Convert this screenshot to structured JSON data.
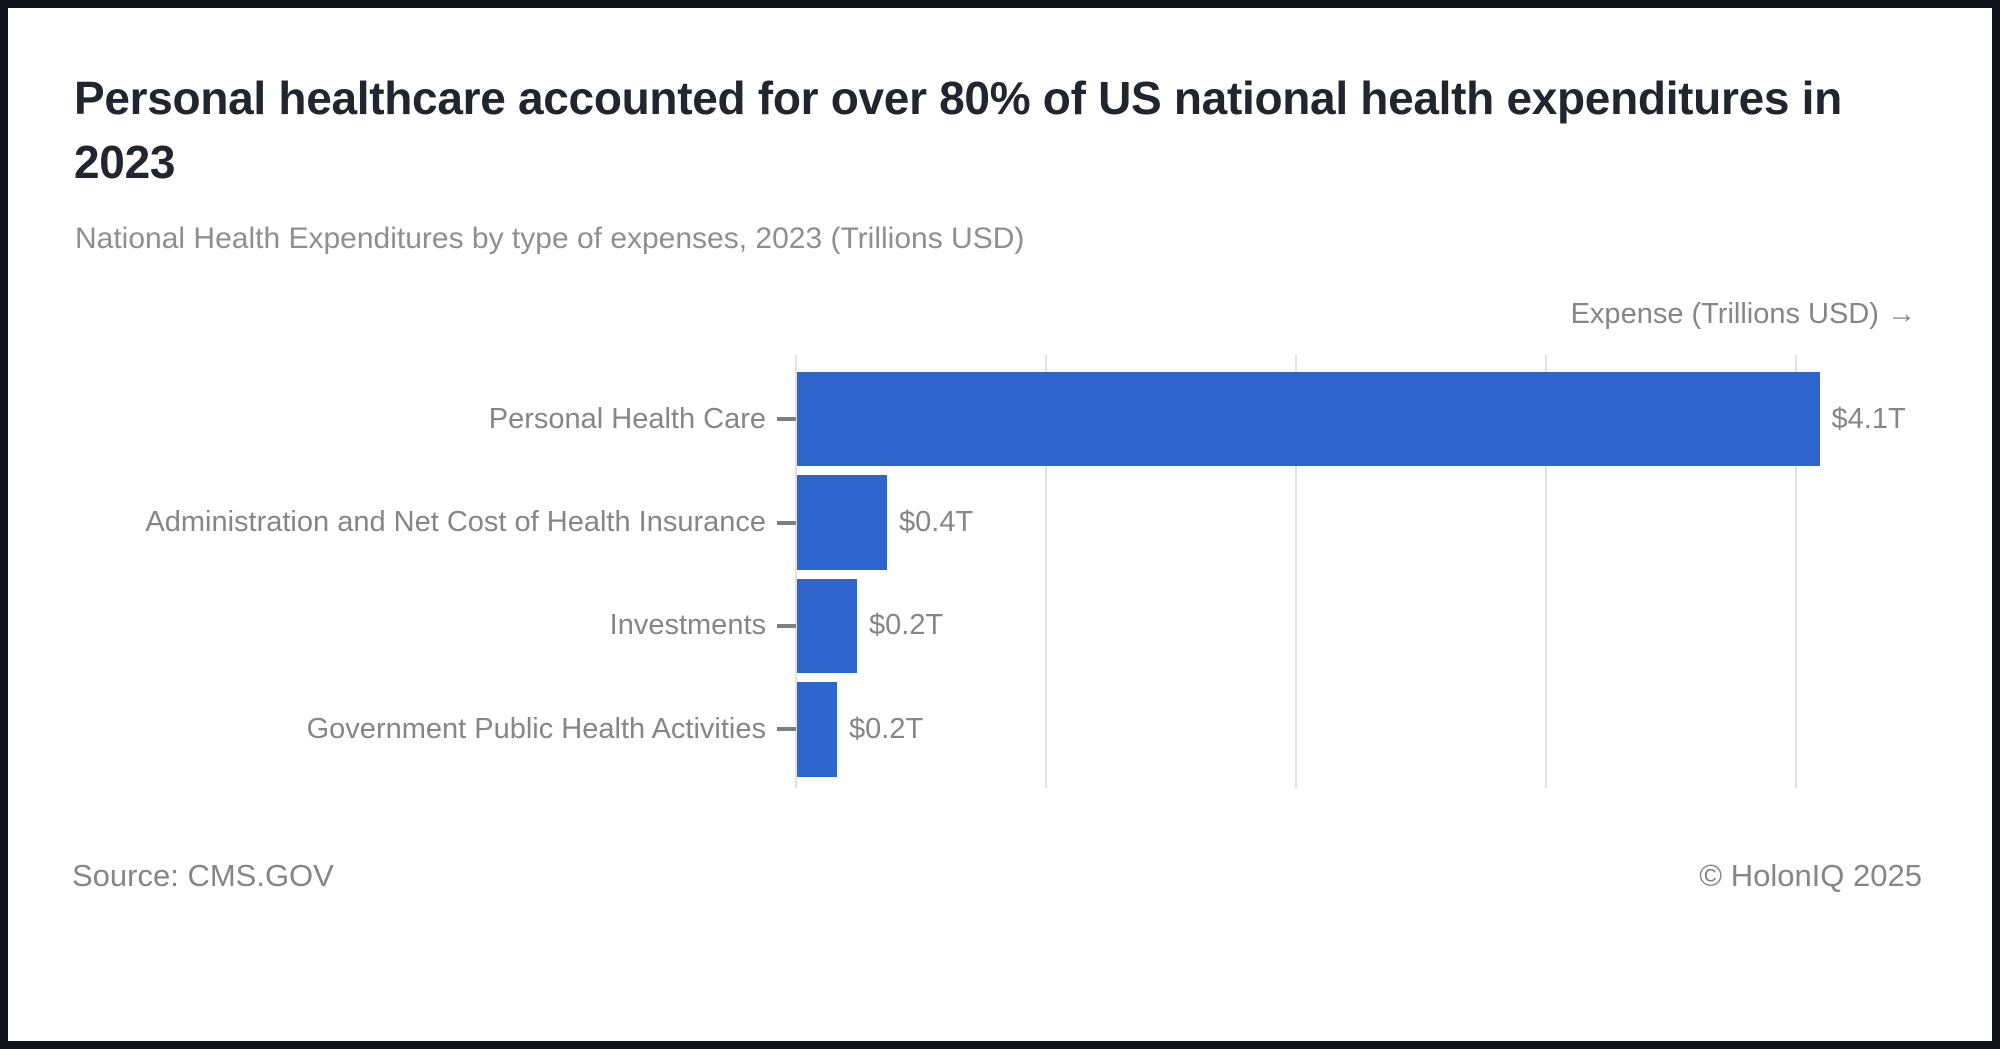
{
  "header": {
    "title_lines": [
      "Personal healthcare accounted for over 80% of US national health expenditures in",
      "2023"
    ],
    "subtitle": "National Health Expenditures by type of expenses, 2023 (Trillions USD)"
  },
  "axis": {
    "label": "Expense (Trillions USD) →"
  },
  "chart_data": {
    "type": "bar",
    "orientation": "horizontal",
    "title": "Personal healthcare accounted for over 80% of US national health expenditures in 2023",
    "subtitle": "National Health Expenditures by type of expenses, 2023 (Trillions USD)",
    "x_axis_label": "Expense (Trillions USD)",
    "unit": "Trillions USD",
    "categories": [
      "Personal Health Care",
      "Administration and Net Cost of Health Insurance",
      "Investments",
      "Government Public Health Activities"
    ],
    "values": [
      4.09,
      0.36,
      0.24,
      0.16
    ],
    "value_labels": [
      "$4.1T",
      "$0.4T",
      "$0.2T",
      "$0.2T"
    ],
    "xlim": [
      0,
      4.5
    ],
    "gridlines_trillions": [
      0,
      1,
      2,
      3,
      4
    ],
    "grid": "vertical-only",
    "legend": "none",
    "bar_color": "#2e65cc"
  },
  "footer": {
    "source": "Source: CMS.GOV",
    "copyright": "© HolonIQ 2025"
  }
}
